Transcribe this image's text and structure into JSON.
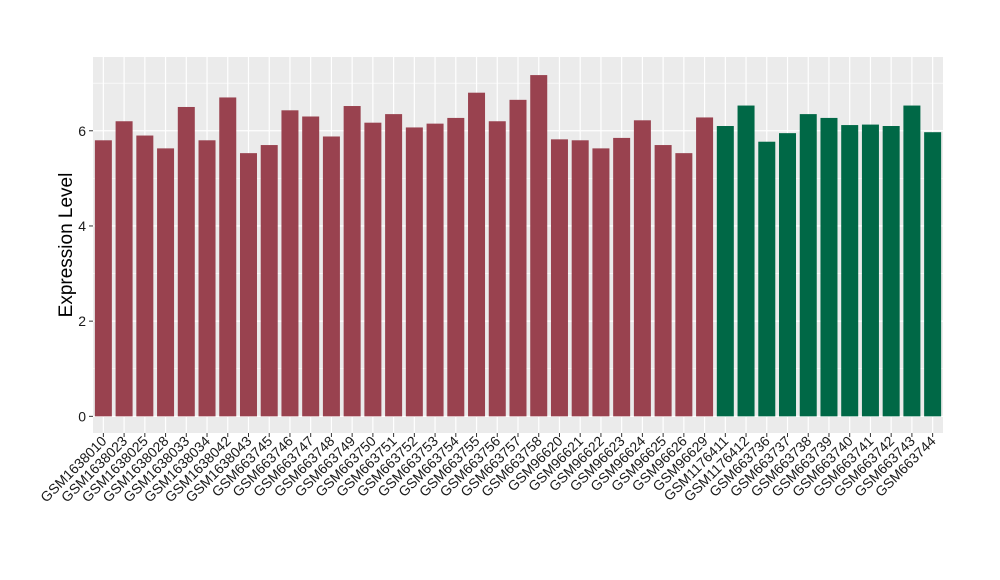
{
  "chart_data": {
    "type": "bar",
    "title": "",
    "xlabel": "",
    "ylabel": "Expression Level",
    "ylim": [
      -0.35,
      7.55
    ],
    "yticks": [
      0,
      2,
      4,
      6
    ],
    "grid": true,
    "legend": "none",
    "categories": [
      "GSM1638010",
      "GSM1638023",
      "GSM1638025",
      "GSM1638028",
      "GSM1638033",
      "GSM1638034",
      "GSM1638042",
      "GSM1638043",
      "GSM663745",
      "GSM663746",
      "GSM663747",
      "GSM663748",
      "GSM663749",
      "GSM663750",
      "GSM663751",
      "GSM663752",
      "GSM663753",
      "GSM663754",
      "GSM663755",
      "GSM663756",
      "GSM663757",
      "GSM663758",
      "GSM96620",
      "GSM96621",
      "GSM96622",
      "GSM96623",
      "GSM96624",
      "GSM96625",
      "GSM96626",
      "GSM96629",
      "GSM1176411",
      "GSM1176412",
      "GSM663736",
      "GSM663737",
      "GSM663738",
      "GSM663739",
      "GSM663740",
      "GSM663741",
      "GSM663742",
      "GSM663743",
      "GSM663744"
    ],
    "values": [
      5.8,
      6.2,
      5.9,
      5.63,
      6.5,
      5.8,
      6.7,
      5.53,
      5.7,
      6.43,
      6.3,
      5.88,
      6.52,
      6.17,
      6.35,
      6.07,
      6.15,
      6.27,
      6.8,
      6.2,
      6.65,
      7.17,
      5.82,
      5.8,
      5.63,
      5.85,
      6.22,
      5.7,
      5.53,
      6.28,
      6.1,
      6.53,
      5.77,
      5.95,
      6.35,
      6.27,
      6.12,
      6.13,
      6.1,
      6.53,
      5.97
    ],
    "bar_colors": [
      "#99424f",
      "#99424f",
      "#99424f",
      "#99424f",
      "#99424f",
      "#99424f",
      "#99424f",
      "#99424f",
      "#99424f",
      "#99424f",
      "#99424f",
      "#99424f",
      "#99424f",
      "#99424f",
      "#99424f",
      "#99424f",
      "#99424f",
      "#99424f",
      "#99424f",
      "#99424f",
      "#99424f",
      "#99424f",
      "#99424f",
      "#99424f",
      "#99424f",
      "#99424f",
      "#99424f",
      "#99424f",
      "#99424f",
      "#99424f",
      "#006846",
      "#006846",
      "#006846",
      "#006846",
      "#006846",
      "#006846",
      "#006846",
      "#006846",
      "#006846",
      "#006846",
      "#006846"
    ],
    "panel_background": "#ebebeb",
    "grid_color": "#ffffff"
  }
}
